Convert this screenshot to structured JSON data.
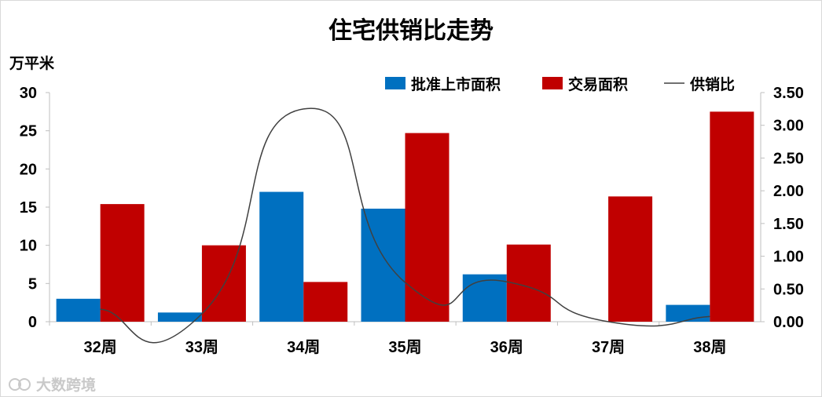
{
  "title": "住宅供销比走势",
  "y_unit_label": "万平米",
  "watermark": "大数跨境",
  "colors": {
    "supply": "#0070c0",
    "sales": "#c00000",
    "ratio": "#404040",
    "axis": "#bfbfbf"
  },
  "chart_data": {
    "type": "bar",
    "categories": [
      "32周",
      "33周",
      "34周",
      "35周",
      "36周",
      "37周",
      "38周"
    ],
    "series": [
      {
        "name": "批准上市面积",
        "type": "bar",
        "axis": "left",
        "values": [
          3.0,
          1.2,
          17.0,
          14.8,
          6.2,
          0,
          2.2
        ]
      },
      {
        "name": "交易面积",
        "type": "bar",
        "axis": "left",
        "values": [
          15.4,
          10.0,
          5.2,
          24.7,
          10.1,
          16.4,
          27.5
        ]
      },
      {
        "name": "供销比",
        "type": "line",
        "axis": "right",
        "values": [
          0.19,
          0.12,
          3.25,
          0.6,
          0.61,
          0,
          0.08
        ]
      }
    ],
    "y_left": {
      "min": 0,
      "max": 30,
      "ticks": [
        "0",
        "5",
        "10",
        "15",
        "20",
        "25",
        "30"
      ]
    },
    "y_right": {
      "min": 0,
      "max": 3.5,
      "ticks": [
        "0.00",
        "0.50",
        "1.00",
        "1.50",
        "2.00",
        "2.50",
        "3.00",
        "3.50"
      ]
    },
    "legend_position": "top-right",
    "grid": false
  }
}
